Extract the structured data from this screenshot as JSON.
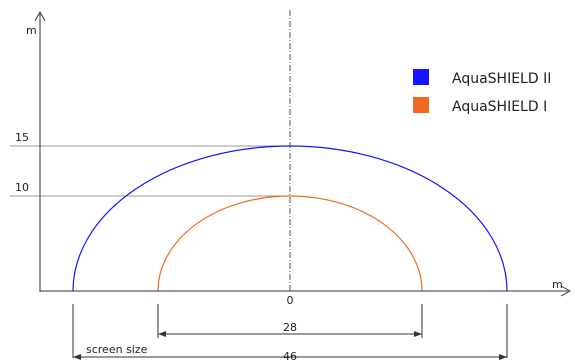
{
  "axes": {
    "y_unit": "m",
    "x_unit": "m",
    "origin_label": "0",
    "level_labels": [
      "15",
      "10"
    ]
  },
  "legend": [
    {
      "label": "AquaSHIELD II",
      "color": "#1414ff"
    },
    {
      "label": "AquaSHIELD I",
      "color": "#f26a21"
    }
  ],
  "dimensions": {
    "inner_width_label": "28",
    "outer_width_label": "46",
    "screen_size_label": "screen size"
  },
  "colors": {
    "axis": "#333333",
    "guide": "#999999",
    "center_line": "#555555",
    "outer_arc": "#1414ff",
    "inner_arc": "#f26a21"
  }
}
